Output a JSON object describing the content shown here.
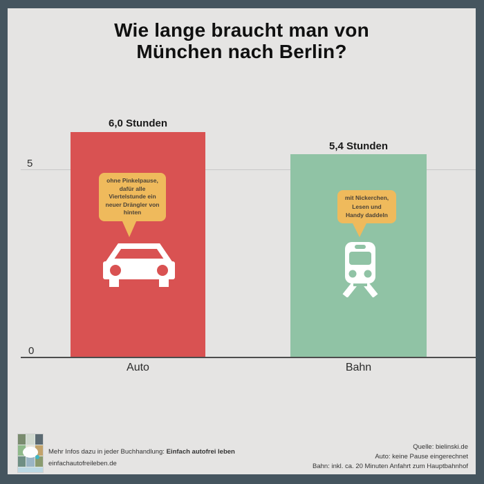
{
  "title": {
    "line1": "Wie lange braucht man von",
    "line2": "München nach Berlin?"
  },
  "chart_data": {
    "type": "bar",
    "title": "Wie lange braucht man von München nach Berlin?",
    "categories": [
      "Auto",
      "Bahn"
    ],
    "values": [
      6.0,
      5.4
    ],
    "unit": "Stunden",
    "value_labels": [
      "6,0 Stunden",
      "5,4 Stunden"
    ],
    "xlabel": "",
    "ylabel": "",
    "yticks": [
      0,
      5
    ],
    "ylim": [
      0,
      6.5
    ],
    "grid": "single horizontal gridline at y=5",
    "legend_position": "none",
    "bar_colors": [
      "#d95252",
      "#90c3a5"
    ],
    "annotations": [
      {
        "category": "Auto",
        "icon": "car",
        "text": "ohne Pinkelpause, dafür alle Viertelstunde ein neuer Drängler von hinten"
      },
      {
        "category": "Bahn",
        "icon": "train",
        "text": "mit Nickerchen, Lesen und Handy daddeln"
      }
    ]
  },
  "axis": {
    "tick_top": "5",
    "tick_bottom": "0"
  },
  "bars": [
    {
      "category": "Auto",
      "value_label": "6,0 Stunden",
      "bubble_lines": [
        "ohne Pinkelpause,",
        "dafür alle",
        "Viertelstunde ein",
        "neuer Drängler von",
        "hinten"
      ]
    },
    {
      "category": "Bahn",
      "value_label": "5,4 Stunden",
      "bubble_lines": [
        "mit Nickerchen,",
        "Lesen und",
        "Handy daddeln"
      ]
    }
  ],
  "footer": {
    "left": {
      "line1_prefix": "Mehr Infos dazu in jeder Buchhandlung: ",
      "line1_bold": "Einfach autofrei leben",
      "line2": "einfachautofreileben.de"
    },
    "right": {
      "line1": "Quelle: bielinski.de",
      "line2": "Auto: keine Pause eingerechnet",
      "line3": "Bahn: inkl. ca. 20 Minuten Anfahrt zum Hauptbahnhof"
    }
  },
  "colors": {
    "bar_auto": "#d95252",
    "bar_bahn": "#90c3a5",
    "bubble": "#efba5c",
    "frame": "#45555f",
    "background": "#e5e4e3"
  }
}
